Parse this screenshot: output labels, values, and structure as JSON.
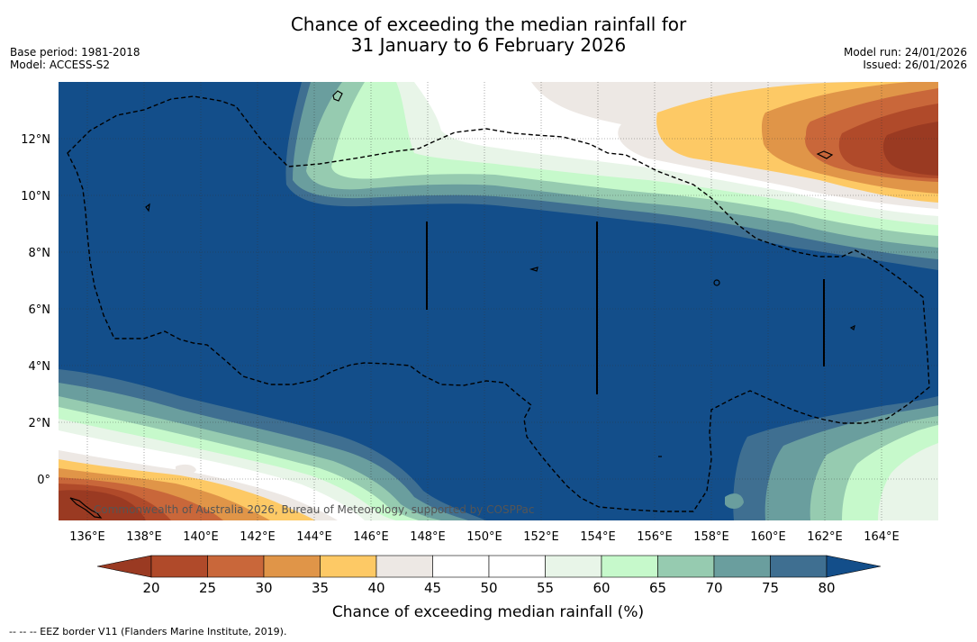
{
  "title": {
    "line1": "Chance of exceeding the median rainfall for",
    "line2": "31 January to 6 February 2026"
  },
  "meta": {
    "base_period": "Base period: 1981-2018",
    "model": "Model: ACCESS-S2",
    "model_run": "Model run: 24/01/2026",
    "issued": "Issued: 26/01/2026"
  },
  "map": {
    "lon_labels": [
      "136°E",
      "138°E",
      "140°E",
      "142°E",
      "144°E",
      "146°E",
      "148°E",
      "150°E",
      "152°E",
      "154°E",
      "156°E",
      "158°E",
      "160°E",
      "162°E",
      "164°E"
    ],
    "lat_labels": [
      "12°N",
      "10°N",
      "8°N",
      "6°N",
      "4°N",
      "2°N",
      "0°"
    ],
    "copyright": "Commonwealth of Australia 2026, Bureau of Meteorology, supported by COSPPac"
  },
  "colorbar": {
    "label": "Chance of exceeding median rainfall (%)",
    "ticks": [
      "20",
      "25",
      "30",
      "35",
      "40",
      "45",
      "50",
      "55",
      "60",
      "65",
      "70",
      "75",
      "80"
    ],
    "colors": [
      "#9a3a22",
      "#b04a2a",
      "#c9673a",
      "#e09548",
      "#fdc965",
      "#ede8e4",
      "#ffffff",
      "#ffffff",
      "#e8f5e8",
      "#c6f9cb",
      "#96cbb0",
      "#6a9e9e",
      "#3f6f91",
      "#134e8a"
    ]
  },
  "footnote": "--  --  -- EEZ border V11 (Flanders Marine Institute, 2019)."
}
